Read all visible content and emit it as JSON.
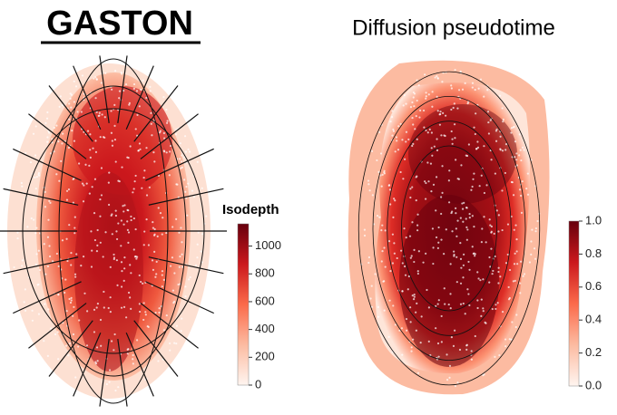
{
  "chart_data": [
    {
      "type": "spatial-heatmap",
      "title": "GASTON",
      "colorbar_label": "Isodepth",
      "clim": [
        0,
        1160
      ],
      "ticks": [
        0,
        200,
        400,
        600,
        800,
        1000
      ]
    },
    {
      "type": "spatial-heatmap",
      "title": "Diffusion pseudotime",
      "clim": [
        0,
        1.0
      ],
      "ticks": [
        {
          "value": 0,
          "label": "0.0"
        },
        {
          "value": 0.2,
          "label": "0.2"
        },
        {
          "value": 0.4,
          "label": "0.4"
        },
        {
          "value": 0.6,
          "label": "0.6"
        },
        {
          "value": 0.8,
          "label": "0.8"
        },
        {
          "value": 1.0,
          "label": "1.0"
        }
      ]
    }
  ]
}
